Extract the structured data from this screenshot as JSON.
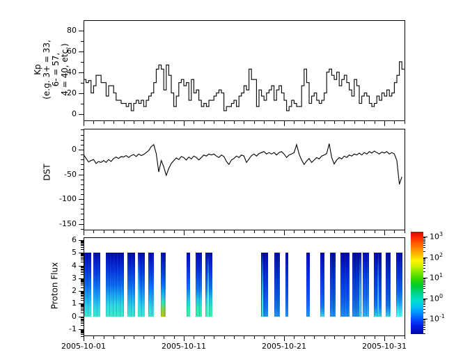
{
  "figure": {
    "x_axis": {
      "xlim_days": [
        0,
        32.08
      ],
      "major_ticks": [
        {
          "day": 0,
          "label": "2005-10-01"
        },
        {
          "day": 10,
          "label": "2005-10-11"
        },
        {
          "day": 20,
          "label": "2005-10-21"
        },
        {
          "day": 30,
          "label": "2005-10-31"
        }
      ],
      "minor_tick_every_days": 1
    }
  },
  "chart_data": [
    {
      "type": "line",
      "panel": "kp",
      "draw_style": "steps",
      "ylabel_lines": [
        "Kp",
        "(e.g. 3+ = 33,",
        "6- = 57,",
        "4 = 40, etc.)"
      ],
      "ylim": [
        -7,
        90
      ],
      "yticks_major": [
        0,
        20,
        40,
        60,
        80
      ],
      "yticks_minor": [
        10,
        30,
        50,
        70
      ],
      "x_start_day": 0,
      "x_step_days": 0.25,
      "values": [
        33,
        30,
        32,
        20,
        27,
        37,
        37,
        30,
        30,
        17,
        27,
        27,
        20,
        13,
        13,
        10,
        10,
        7,
        10,
        3,
        10,
        13,
        10,
        13,
        7,
        13,
        17,
        20,
        30,
        43,
        47,
        43,
        23,
        47,
        37,
        20,
        7,
        17,
        30,
        33,
        27,
        30,
        13,
        33,
        20,
        23,
        13,
        7,
        10,
        7,
        13,
        13,
        17,
        20,
        23,
        20,
        3,
        7,
        7,
        10,
        13,
        7,
        17,
        20,
        27,
        23,
        43,
        33,
        33,
        7,
        23,
        17,
        13,
        20,
        23,
        27,
        13,
        23,
        27,
        20,
        13,
        3,
        7,
        13,
        10,
        7,
        7,
        27,
        43,
        30,
        10,
        17,
        20,
        13,
        10,
        13,
        20,
        40,
        43,
        37,
        33,
        40,
        27,
        33,
        37,
        30,
        23,
        17,
        33,
        27,
        10,
        17,
        20,
        17,
        10,
        7,
        10,
        17,
        13,
        20,
        17,
        23,
        17,
        20,
        30,
        37,
        50,
        43
      ]
    },
    {
      "type": "line",
      "panel": "dst",
      "draw_style": "linear",
      "ylabel": "DST",
      "ylim": [
        -163,
        42
      ],
      "yticks_major": [
        0,
        -50,
        -100,
        -150
      ],
      "yticks_minor": [
        40,
        30,
        20,
        10,
        -10,
        -20,
        -30,
        -40,
        -60,
        -70,
        -80,
        -90,
        -110,
        -120,
        -130,
        -140,
        -160
      ],
      "x_start_day": 0,
      "x_step_days": 0.25,
      "values": [
        -10,
        -18,
        -25,
        -22,
        -20,
        -28,
        -24,
        -26,
        -22,
        -26,
        -20,
        -24,
        -18,
        -15,
        -18,
        -14,
        -15,
        -12,
        -16,
        -12,
        -10,
        -14,
        -9,
        -12,
        -10,
        -6,
        -2,
        6,
        10,
        -8,
        -45,
        -22,
        -35,
        -52,
        -38,
        -28,
        -22,
        -17,
        -20,
        -14,
        -16,
        -21,
        -15,
        -19,
        -13,
        -16,
        -21,
        -16,
        -11,
        -13,
        -9,
        -11,
        -9,
        -13,
        -16,
        -11,
        -14,
        -24,
        -30,
        -21,
        -18,
        -13,
        -16,
        -11,
        -13,
        -26,
        -19,
        -12,
        -9,
        -13,
        -8,
        -6,
        -4,
        -9,
        -6,
        -9,
        -6,
        -11,
        -6,
        -4,
        -9,
        -16,
        -11,
        -9,
        -6,
        10,
        -9,
        -21,
        -30,
        -23,
        -18,
        -26,
        -21,
        -16,
        -19,
        -13,
        -11,
        -8,
        12,
        -16,
        -29,
        -21,
        -16,
        -19,
        -13,
        -16,
        -11,
        -13,
        -9,
        -11,
        -7,
        -11,
        -6,
        -9,
        -4,
        -7,
        -3,
        -6,
        -9,
        -5,
        -7,
        -4,
        -9,
        -6,
        -9,
        -22,
        -70,
        -55
      ]
    },
    {
      "type": "heatmap",
      "panel": "proton_flux",
      "ylabel": "Proton Flux",
      "ylim": [
        -1.55,
        6.22
      ],
      "yticks_major": [
        -1,
        0,
        1,
        2,
        3,
        4,
        5,
        6
      ],
      "yticks_minor_style": "log-decades",
      "band_value_span": [
        0,
        5
      ],
      "gradient_profiles": {
        "A": [
          [
            0,
            "#0007b2"
          ],
          [
            28,
            "#0336de"
          ],
          [
            52,
            "#0b6ef0"
          ],
          [
            70,
            "#18a8f2"
          ],
          [
            85,
            "#2bd4e6"
          ],
          [
            100,
            "#3ae8cc"
          ]
        ],
        "A3": [
          [
            0,
            "#0007b2"
          ],
          [
            28,
            "#0336de"
          ],
          [
            52,
            "#0b6ef0"
          ],
          [
            68,
            "#18acf2"
          ],
          [
            82,
            "#2cd8e0"
          ],
          [
            100,
            "#3cecca"
          ]
        ],
        "S": [
          [
            0,
            "#0007b2"
          ],
          [
            28,
            "#0336de"
          ],
          [
            50,
            "#0b6ef0"
          ],
          [
            66,
            "#1cb6ec"
          ],
          [
            78,
            "#36e0b2"
          ],
          [
            89,
            "#86d444"
          ],
          [
            100,
            "#b6c800"
          ]
        ],
        "B": [
          [
            0,
            "#0007b2"
          ],
          [
            30,
            "#0336de"
          ],
          [
            55,
            "#0b6ef0"
          ],
          [
            73,
            "#1cc0e6"
          ],
          [
            87,
            "#2ce8b6"
          ],
          [
            100,
            "#32f0a2"
          ]
        ],
        "C": [
          [
            0,
            "#0006a4"
          ],
          [
            38,
            "#0130d8"
          ],
          [
            68,
            "#0a52e8"
          ],
          [
            87,
            "#1274ee"
          ],
          [
            100,
            "#2092f0"
          ]
        ],
        "Cl": [
          [
            0,
            "#0108b6"
          ],
          [
            38,
            "#0840e6"
          ],
          [
            68,
            "#1468f0"
          ],
          [
            87,
            "#2292f4"
          ],
          [
            100,
            "#32b2f0"
          ]
        ],
        "Ct": [
          [
            0,
            "#0006a4"
          ],
          [
            38,
            "#0130d8"
          ],
          [
            66,
            "#0a52e8"
          ],
          [
            84,
            "#1274ee"
          ],
          [
            93,
            "#22a8e8"
          ],
          [
            100,
            "#32d8e2"
          ]
        ],
        "D": [
          [
            0,
            "#0007aa"
          ],
          [
            36,
            "#0136dc"
          ],
          [
            62,
            "#0b62ec"
          ],
          [
            78,
            "#18a2f0"
          ],
          [
            89,
            "#32d8ee"
          ],
          [
            100,
            "#4df8ee"
          ]
        ]
      },
      "bands": [
        {
          "d0": 0.05,
          "d1": 0.75,
          "p": "A"
        },
        {
          "d0": 0.95,
          "d1": 1.65,
          "p": "A"
        },
        {
          "d0": 2.2,
          "d1": 4.0,
          "p": "A3"
        },
        {
          "d0": 4.35,
          "d1": 5.15,
          "p": "A"
        },
        {
          "d0": 5.4,
          "d1": 6.1,
          "p": "A",
          "streak": {
            "pos": 0.05,
            "color": "#40f0d8"
          }
        },
        {
          "d0": 6.45,
          "d1": 7.05,
          "p": "A"
        },
        {
          "d0": 7.7,
          "d1": 8.2,
          "p": "S"
        },
        {
          "d0": 10.25,
          "d1": 10.65,
          "p": "B"
        },
        {
          "d0": 11.2,
          "d1": 11.8,
          "p": "B"
        },
        {
          "d0": 12.15,
          "d1": 12.85,
          "p": "B",
          "streak": {
            "pos": 0.3,
            "color": "#70ffe0"
          }
        },
        {
          "d0": 17.7,
          "d1": 18.4,
          "p": "C",
          "streak": {
            "pos": 0.1,
            "color": "#38e0d8"
          }
        },
        {
          "d0": 19.0,
          "d1": 19.6,
          "p": "C"
        },
        {
          "d0": 20.1,
          "d1": 20.4,
          "p": "C"
        },
        {
          "d0": 22.2,
          "d1": 22.6,
          "p": "C"
        },
        {
          "d0": 23.6,
          "d1": 24.0,
          "p": "Ct"
        },
        {
          "d0": 24.55,
          "d1": 25.15,
          "p": "C"
        },
        {
          "d0": 25.6,
          "d1": 26.55,
          "p": "C"
        },
        {
          "d0": 26.8,
          "d1": 27.7,
          "p": "C",
          "streak": {
            "pos": 0.78,
            "color": "#50ecdc"
          }
        },
        {
          "d0": 27.85,
          "d1": 28.5,
          "p": "Cl"
        },
        {
          "d0": 28.95,
          "d1": 29.7,
          "p": "Ct",
          "streak": {
            "pos": 0.45,
            "color": "#38d8e8"
          }
        },
        {
          "d0": 30.1,
          "d1": 30.6,
          "p": "Ct"
        },
        {
          "d0": 31.15,
          "d1": 31.8,
          "p": "D"
        }
      ],
      "colorbar": {
        "scale": "log",
        "tick_exponents": [
          3,
          2,
          1,
          0,
          -1
        ],
        "tick_base": "10",
        "gradient": [
          [
            0,
            "#d40000"
          ],
          [
            6,
            "#ff2a00"
          ],
          [
            14,
            "#ff7300"
          ],
          [
            22,
            "#ffb900"
          ],
          [
            28,
            "#fff200"
          ],
          [
            34,
            "#cdf000"
          ],
          [
            40,
            "#7ae600"
          ],
          [
            47,
            "#2ed600"
          ],
          [
            53,
            "#00cc33"
          ],
          [
            60,
            "#00d48d"
          ],
          [
            67,
            "#00e0cc"
          ],
          [
            73,
            "#00c4f2"
          ],
          [
            79,
            "#0092ff"
          ],
          [
            85,
            "#0057ff"
          ],
          [
            91,
            "#0022e8"
          ],
          [
            100,
            "#0008a8"
          ]
        ]
      }
    }
  ]
}
